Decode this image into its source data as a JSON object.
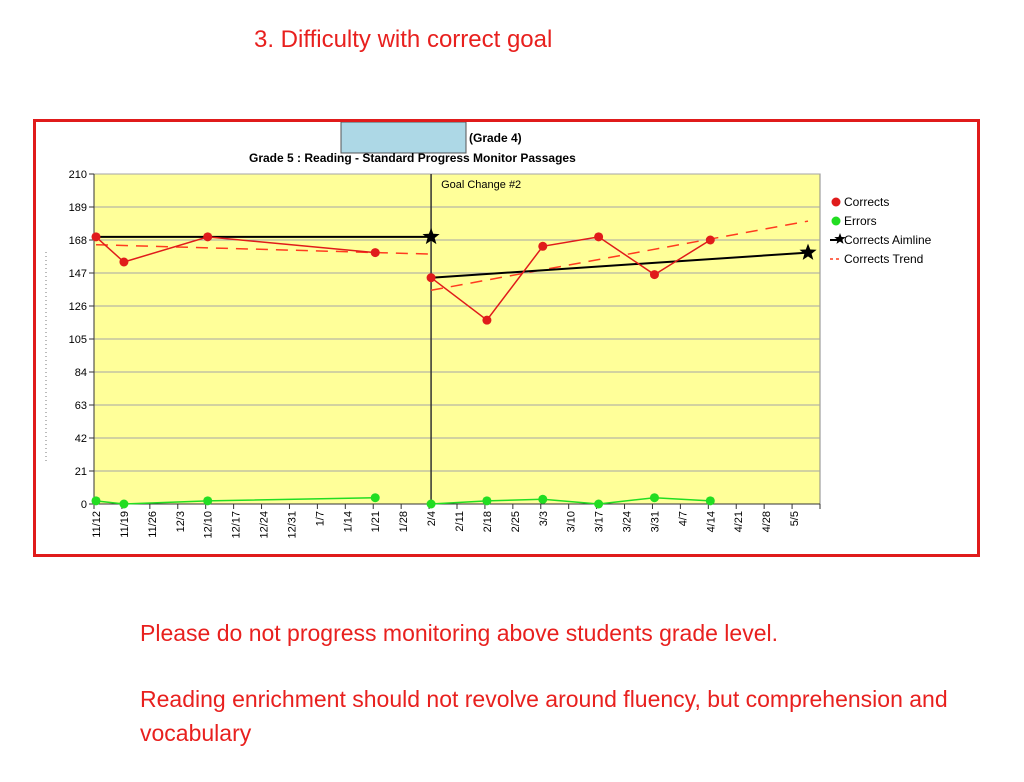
{
  "slide": {
    "title": "3.  Difficulty with correct goal",
    "notes": [
      "Please do not progress monitoring above students grade level.",
      "Reading enrichment should not revolve around fluency, but comprehension and vocabulary"
    ]
  },
  "colors": {
    "text_red": "#e8201e",
    "frame": "#e01b1b",
    "plot_bg": "#ffff99",
    "corrects": "#e01b1b",
    "errors": "#22dd22",
    "aimline": "#000000",
    "trend": "#ff3b1f",
    "cover_box": "#add8e6"
  },
  "chart_data": {
    "type": "line",
    "title_lines": [
      "(Grade 4)",
      "Grade 5 : Reading - Standard Progress Monitor Passages"
    ],
    "annotation": "Goal Change #2",
    "ylim": [
      0,
      210
    ],
    "yticks": [
      0,
      21,
      42,
      63,
      84,
      105,
      126,
      147,
      168,
      189,
      210
    ],
    "grid": true,
    "legend_position": "right",
    "categories": [
      "11/12",
      "11/19",
      "11/26",
      "12/3",
      "12/10",
      "12/17",
      "12/24",
      "12/31",
      "1/7",
      "1/14",
      "1/21",
      "1/28",
      "2/4",
      "2/11",
      "2/18",
      "2/25",
      "3/3",
      "3/10",
      "3/17",
      "3/24",
      "3/31",
      "4/7",
      "4/14",
      "4/21",
      "4/28",
      "5/5"
    ],
    "series": [
      {
        "name": "Corrects",
        "segments": [
          [
            [
              0,
              170
            ],
            [
              1,
              154
            ],
            [
              4,
              170
            ],
            [
              10,
              160
            ]
          ],
          [
            [
              12,
              144
            ],
            [
              14,
              117
            ],
            [
              16,
              164
            ],
            [
              18,
              170
            ],
            [
              20,
              146
            ],
            [
              22,
              168
            ]
          ]
        ]
      },
      {
        "name": "Errors",
        "segments": [
          [
            [
              0,
              2
            ],
            [
              1,
              0
            ],
            [
              4,
              2
            ],
            [
              10,
              4
            ]
          ],
          [
            [
              12,
              0
            ],
            [
              14,
              2
            ],
            [
              16,
              3
            ],
            [
              18,
              0
            ],
            [
              20,
              4
            ],
            [
              22,
              2
            ]
          ]
        ]
      },
      {
        "name": "Corrects Aimline",
        "segments": [
          [
            [
              0,
              170
            ],
            [
              12,
              170
            ]
          ],
          [
            [
              12,
              144
            ],
            [
              25.5,
              160
            ]
          ]
        ]
      },
      {
        "name": "Corrects Trend",
        "segments": [
          [
            [
              0,
              165
            ],
            [
              12,
              159
            ]
          ],
          [
            [
              12,
              136
            ],
            [
              25.5,
              180
            ]
          ]
        ]
      }
    ]
  }
}
